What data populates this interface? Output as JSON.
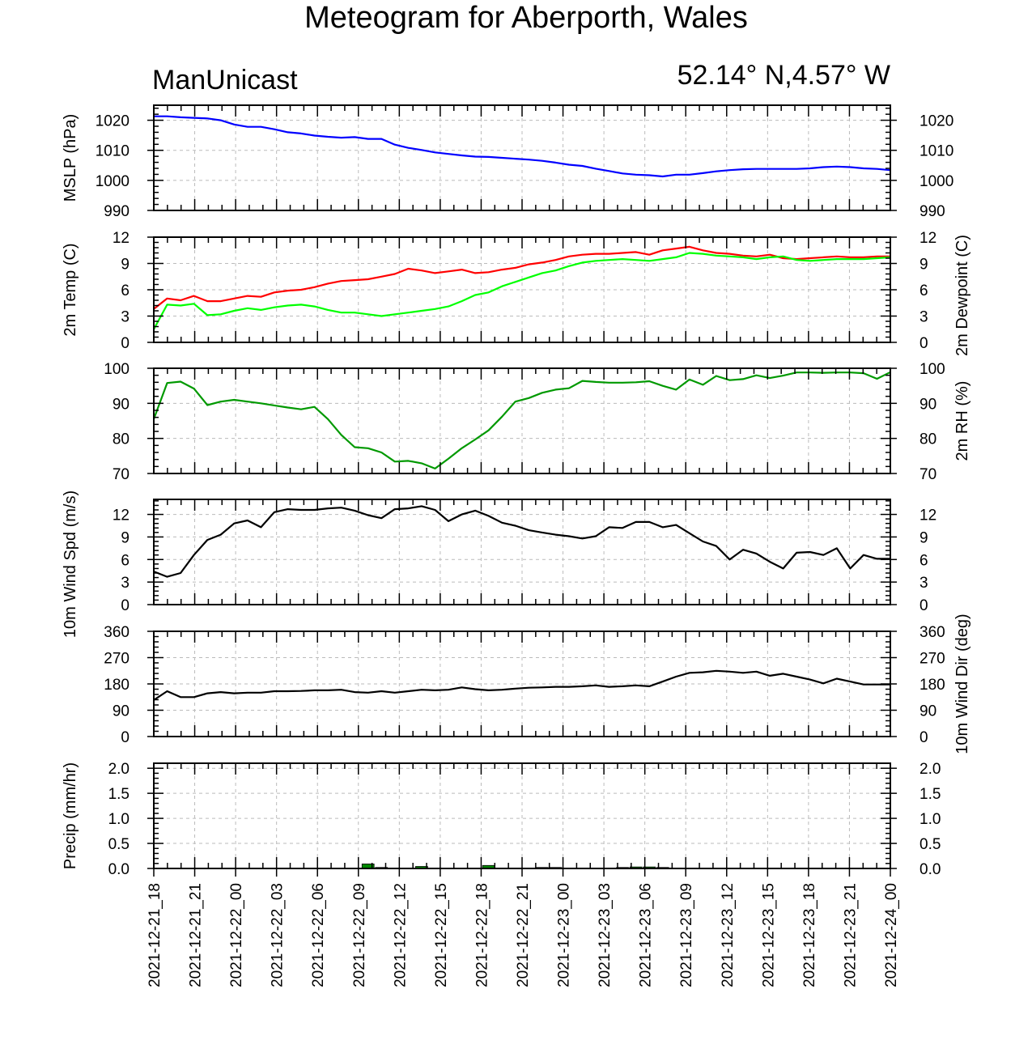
{
  "header": {
    "title": "Meteogram for Aberporth, Wales",
    "model": "ManUnicast",
    "location": "52.14° N,4.57° W"
  },
  "chart_data": [
    {
      "type": "line",
      "ylabel": "MSLP (hPa)",
      "ylim": [
        990,
        1025
      ],
      "yticks": [
        990,
        1000,
        1010,
        1020
      ],
      "series": [
        {
          "color": "#0000ff",
          "values": [
            1021.3,
            1021.3,
            1021.0,
            1020.8,
            1020.6,
            1020.0,
            1018.6,
            1017.8,
            1017.8,
            1017.0,
            1016.0,
            1015.6,
            1014.9,
            1014.5,
            1014.2,
            1014.4,
            1013.8,
            1013.8,
            1011.9,
            1010.8,
            1010.1,
            1009.3,
            1008.8,
            1008.3,
            1007.9,
            1007.8,
            1007.5,
            1007.2,
            1006.9,
            1006.5,
            1005.9,
            1005.2,
            1004.8,
            1003.9,
            1003.1,
            1002.3,
            1001.9,
            1001.7,
            1001.3,
            1001.9,
            1001.9,
            1002.4,
            1003.0,
            1003.4,
            1003.7,
            1003.8,
            1003.8,
            1003.8,
            1003.8,
            1004.0,
            1004.4,
            1004.6,
            1004.4,
            1004.0,
            1003.8,
            1003.4
          ]
        }
      ]
    },
    {
      "type": "line",
      "ylabel": "2m Temp (C)",
      "ylabel_right": "2m Dewpoint (C)",
      "ylim": [
        0,
        12
      ],
      "yticks": [
        0,
        3,
        6,
        9,
        12
      ],
      "series": [
        {
          "color": "#ff0000",
          "values": [
            3.8,
            5.0,
            4.8,
            5.3,
            4.7,
            4.7,
            5.0,
            5.3,
            5.2,
            5.7,
            5.9,
            6.0,
            6.3,
            6.7,
            7.0,
            7.1,
            7.2,
            7.5,
            7.8,
            8.4,
            8.2,
            7.9,
            8.1,
            8.3,
            7.9,
            8.0,
            8.3,
            8.5,
            8.9,
            9.1,
            9.4,
            9.8,
            10.0,
            10.1,
            10.1,
            10.2,
            10.3,
            10.0,
            10.5,
            10.7,
            10.9,
            10.5,
            10.2,
            10.1,
            9.9,
            9.8,
            10.0,
            9.6,
            9.5,
            9.6,
            9.7,
            9.8,
            9.7,
            9.7,
            9.8,
            9.8
          ]
        },
        {
          "color": "#00ff00",
          "values": [
            1.5,
            4.3,
            4.2,
            4.4,
            3.1,
            3.2,
            3.6,
            3.9,
            3.7,
            4.0,
            4.2,
            4.3,
            4.1,
            3.7,
            3.4,
            3.4,
            3.2,
            3.0,
            3.2,
            3.4,
            3.6,
            3.8,
            4.1,
            4.7,
            5.4,
            5.7,
            6.4,
            6.9,
            7.4,
            7.9,
            8.2,
            8.7,
            9.1,
            9.3,
            9.4,
            9.5,
            9.4,
            9.3,
            9.5,
            9.7,
            10.2,
            10.1,
            9.9,
            9.8,
            9.7,
            9.5,
            9.7,
            9.8,
            9.4,
            9.3,
            9.4,
            9.5,
            9.5,
            9.5,
            9.6,
            9.7
          ]
        }
      ]
    },
    {
      "type": "line",
      "ylabel_right": "2m RH (%)",
      "ylim": [
        70,
        100
      ],
      "yticks": [
        70,
        80,
        90,
        100
      ],
      "series": [
        {
          "color": "#009900",
          "values": [
            85.5,
            95.8,
            96.2,
            94.2,
            89.5,
            90.5,
            91.0,
            90.5,
            90.0,
            89.4,
            88.8,
            88.3,
            89.0,
            85.5,
            81.0,
            77.5,
            77.2,
            76.0,
            73.4,
            73.6,
            72.9,
            71.4,
            74.2,
            77.2,
            79.7,
            82.3,
            86.2,
            90.5,
            91.5,
            93.0,
            93.9,
            94.3,
            96.4,
            96.1,
            95.9,
            95.9,
            96.0,
            96.3,
            95.0,
            93.9,
            96.8,
            95.3,
            97.8,
            96.6,
            96.9,
            98.0,
            97.2,
            97.9,
            98.8,
            98.8,
            98.7,
            98.8,
            98.8,
            98.6,
            97.0,
            98.9
          ]
        }
      ]
    },
    {
      "type": "line",
      "ylabel": "10m Wind Spd (m/s)",
      "ylim": [
        0,
        14
      ],
      "yticks": [
        0,
        3,
        6,
        9,
        12
      ],
      "series": [
        {
          "color": "#000000",
          "values": [
            4.4,
            3.7,
            4.2,
            6.6,
            8.6,
            9.3,
            10.8,
            11.2,
            10.3,
            12.3,
            12.7,
            12.6,
            12.6,
            12.8,
            12.9,
            12.5,
            11.9,
            11.5,
            12.7,
            12.8,
            13.1,
            12.6,
            11.1,
            12.0,
            12.5,
            11.8,
            10.9,
            10.5,
            9.9,
            9.6,
            9.3,
            9.1,
            8.8,
            9.1,
            10.3,
            10.2,
            11.0,
            11.0,
            10.3,
            10.6,
            9.5,
            8.4,
            7.8,
            6.0,
            7.3,
            6.8,
            5.7,
            4.8,
            6.9,
            7.0,
            6.6,
            7.5,
            4.8,
            6.6,
            6.1,
            6.1
          ]
        }
      ]
    },
    {
      "type": "line",
      "ylabel_right": "10m Wind Dir (deg)",
      "ylim": [
        0,
        360
      ],
      "yticks": [
        0,
        90,
        180,
        270,
        360
      ],
      "series": [
        {
          "color": "#000000",
          "values": [
            125,
            155,
            135,
            135,
            148,
            152,
            148,
            150,
            150,
            155,
            155,
            156,
            158,
            158,
            160,
            152,
            150,
            155,
            150,
            155,
            160,
            158,
            160,
            168,
            162,
            158,
            160,
            164,
            167,
            168,
            170,
            170,
            172,
            175,
            170,
            172,
            175,
            172,
            188,
            205,
            218,
            220,
            225,
            222,
            218,
            222,
            208,
            215,
            205,
            195,
            182,
            198,
            188,
            178,
            178,
            178
          ]
        }
      ]
    },
    {
      "type": "bar",
      "ylabel": "Precip (mm/hr)",
      "ylim": [
        0,
        2.1
      ],
      "yticks": [
        "0.0",
        "0.5",
        "1.0",
        "1.5",
        "2.0"
      ],
      "series": [
        {
          "color": "#008800",
          "values": [
            0,
            0,
            0,
            0,
            0,
            0,
            0,
            0,
            0,
            0,
            0,
            0,
            0,
            0,
            0,
            0,
            0.09,
            0.02,
            0.01,
            0.01,
            0.04,
            0.01,
            0,
            0,
            0,
            0.06,
            0.01,
            0.01,
            0.01,
            0.02,
            0.02,
            0.01,
            0.01,
            0.01,
            0.01,
            0.02,
            0.03,
            0.03,
            0.02,
            0.01,
            0,
            0,
            0,
            0,
            0,
            0,
            0,
            0,
            0,
            0,
            0,
            0,
            0,
            0,
            0,
            0
          ]
        }
      ]
    }
  ],
  "x_axis": {
    "tick_labels": [
      "2021-12-21_18",
      "2021-12-21_21",
      "2021-12-22_00",
      "2021-12-22_03",
      "2021-12-22_06",
      "2021-12-22_09",
      "2021-12-22_12",
      "2021-12-22_15",
      "2021-12-22_18",
      "2021-12-22_21",
      "2021-12-23_00",
      "2021-12-23_03",
      "2021-12-23_06",
      "2021-12-23_09",
      "2021-12-23_12",
      "2021-12-23_15",
      "2021-12-23_18",
      "2021-12-23_21",
      "2021-12-24_00"
    ]
  }
}
